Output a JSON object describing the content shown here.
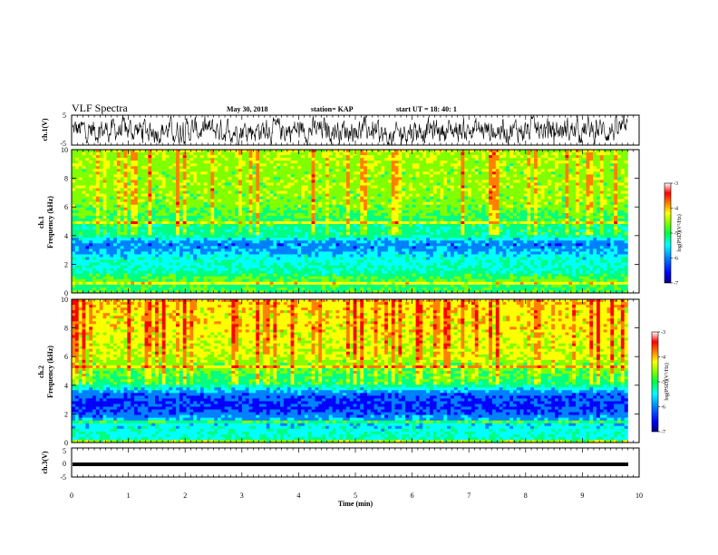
{
  "header": {
    "title": "VLF Spectra",
    "date": "May 30, 2018",
    "station": "station= KAP",
    "start_time": "start  UT  =   18: 40: 1"
  },
  "chart_data": [
    {
      "type": "line",
      "panel": "ch1-waveform",
      "ylabel": "ch.1(V)",
      "ylim": [
        -5,
        5
      ],
      "yticks": [
        "5",
        "-5"
      ],
      "xlim": [
        0,
        10
      ],
      "trace_color": "#000000",
      "approx_envelope": {
        "min": -5,
        "max": 5,
        "dip_near_min": 5.6
      }
    },
    {
      "type": "heatmap",
      "panel": "ch1-spectrogram",
      "ylabel": "ch.1\nFrequency (kHz)",
      "ylabel_lines": [
        "ch.1",
        "Frequency  (kHz)"
      ],
      "ylim": [
        0,
        10
      ],
      "yticks": [
        "0",
        "2",
        "4",
        "6",
        "8",
        "10"
      ],
      "xlim": [
        0,
        9.8
      ],
      "frequency_profile_kHz": [
        0,
        0.5,
        1,
        1.5,
        2,
        2.5,
        3,
        3.5,
        4,
        4.5,
        5,
        5.5,
        6,
        7,
        8,
        9,
        10
      ],
      "typical_logPSD": [
        -4.8,
        -4.9,
        -4.7,
        -5.2,
        -5.3,
        -5.4,
        -5.8,
        -5.9,
        -5.0,
        -5.1,
        -4.9,
        -4.8,
        -4.6,
        -4.5,
        -4.5,
        -4.5,
        -4.4
      ],
      "colorbar": {
        "label": "log(PSD)(V²/Hz)",
        "min": -7,
        "max": -3,
        "ticks": [
          "-3",
          "-4",
          "-5",
          "-6",
          "-7"
        ]
      }
    },
    {
      "type": "heatmap",
      "panel": "ch2-spectrogram",
      "ylabel": "ch.2\nFrequency (kHz)",
      "ylabel_lines": [
        "ch.2",
        "Frequency  (kHz)"
      ],
      "ylim": [
        0,
        10
      ],
      "yticks": [
        "0",
        "2",
        "4",
        "6",
        "8",
        "10"
      ],
      "xlim": [
        0,
        9.8
      ],
      "frequency_profile_kHz": [
        0,
        0.5,
        1,
        1.5,
        2,
        2.5,
        3,
        3.5,
        4,
        4.5,
        5,
        5.5,
        6,
        7,
        8,
        9,
        10
      ],
      "typical_logPSD": [
        -5.2,
        -5.3,
        -5.4,
        -5.6,
        -6.0,
        -6.2,
        -6.1,
        -5.9,
        -5.0,
        -4.9,
        -4.7,
        -4.6,
        -4.3,
        -4.2,
        -4.1,
        -4.1,
        -4.0
      ],
      "colorbar": {
        "label": "log(PSD)(V²/Hz)",
        "min": -7,
        "max": -3,
        "ticks": [
          "-3",
          "-4",
          "-5",
          "-6",
          "-7"
        ]
      }
    },
    {
      "type": "line",
      "panel": "ch3-waveform",
      "ylabel": "ch.3(V)",
      "ylim": [
        -5,
        5
      ],
      "yticks": [
        "5",
        "0",
        "-5"
      ],
      "xlim": [
        0,
        10
      ],
      "constant_value": 0,
      "trace_color": "#000000"
    }
  ],
  "xaxis": {
    "label": "Time  (min)",
    "ticks": [
      "0",
      "1",
      "2",
      "3",
      "4",
      "5",
      "6",
      "7",
      "8",
      "9",
      "10"
    ],
    "range": [
      0,
      10
    ]
  },
  "colormap": [
    "#000080",
    "#0000ff",
    "#0080ff",
    "#00ffff",
    "#00ff80",
    "#80ff00",
    "#ffff00",
    "#ff8000",
    "#ff0000",
    "#ffffff"
  ]
}
